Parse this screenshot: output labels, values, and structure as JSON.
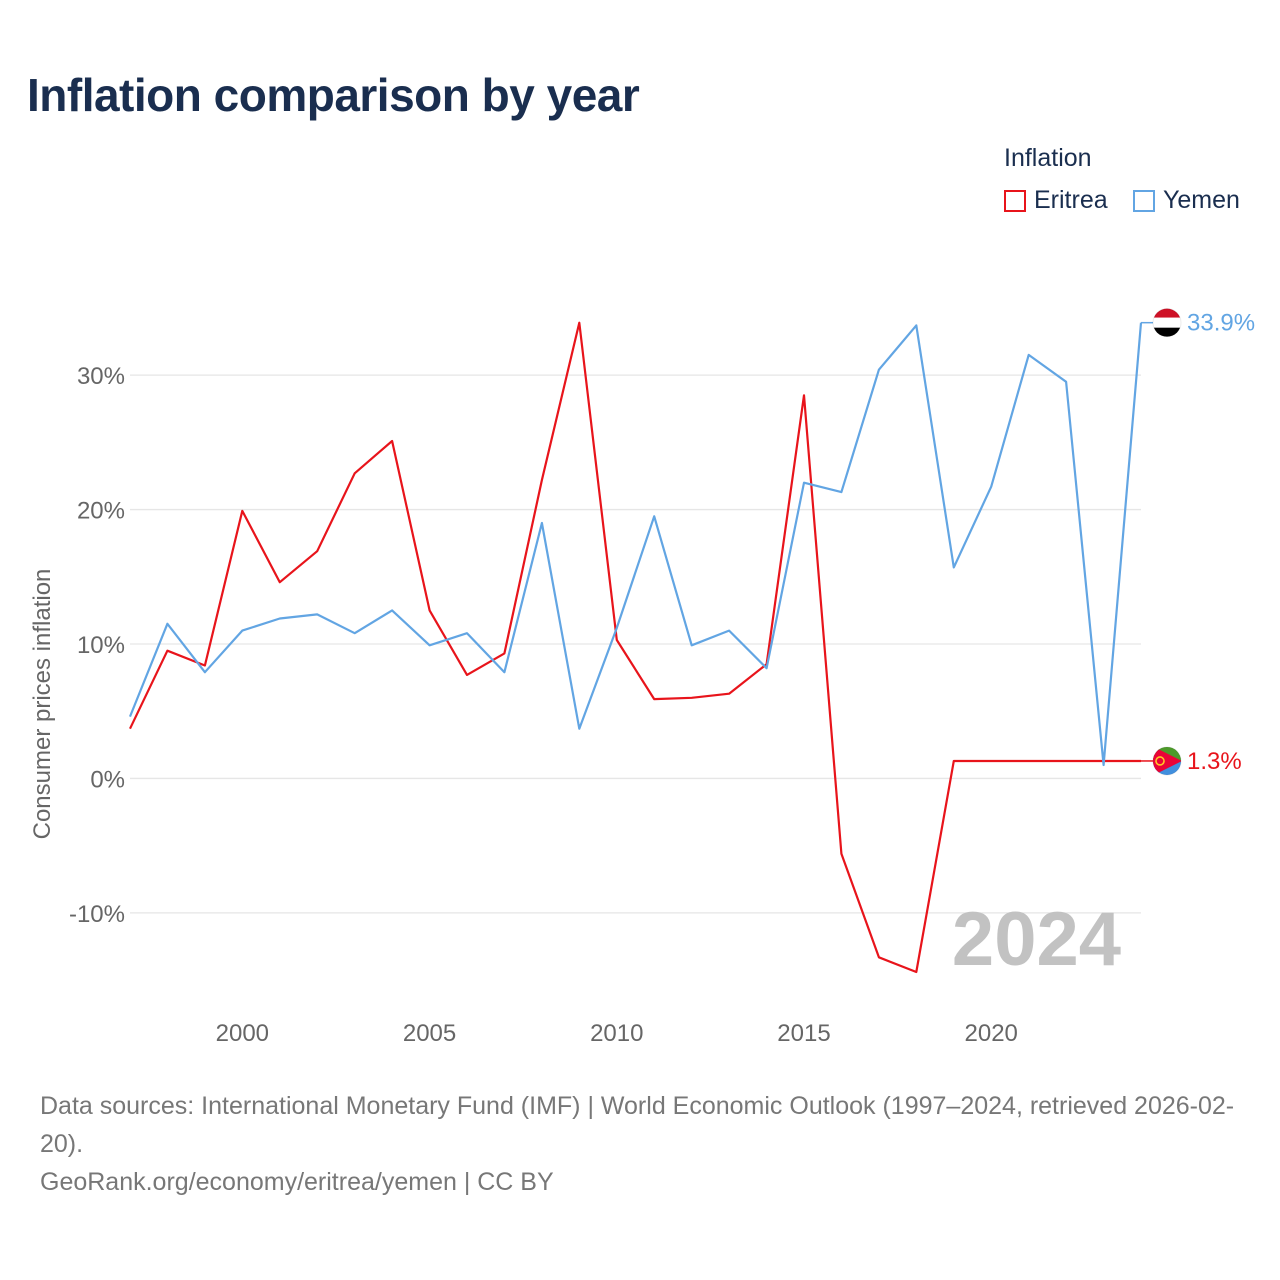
{
  "title": "Inflation comparison by year",
  "legend": {
    "title": "Inflation",
    "items": [
      {
        "label": "Eritrea",
        "color": "#e8141b"
      },
      {
        "label": "Yemen",
        "color": "#62a5e3"
      }
    ]
  },
  "year_watermark": "2024",
  "footer": {
    "sources": "Data sources: International Monetary Fund (IMF) | World Economic Outlook (1997–2024, retrieved 2026-02-20).",
    "credit": "GeoRank.org/economy/eritrea/yemen | CC BY"
  },
  "chart_data": {
    "type": "line",
    "title": "Inflation comparison by year",
    "xlabel": "",
    "ylabel": "Consumer prices inflation",
    "xlim": [
      1997,
      2024
    ],
    "ylim": [
      -17,
      37
    ],
    "y_ticks": [
      -10,
      0,
      10,
      20,
      30
    ],
    "y_tick_labels": [
      "-10%",
      "0%",
      "10%",
      "20%",
      "30%"
    ],
    "x_ticks": [
      2000,
      2005,
      2010,
      2015,
      2020
    ],
    "x_tick_labels": [
      "2000",
      "2005",
      "2010",
      "2015",
      "2020"
    ],
    "grid": true,
    "x": [
      1997,
      1998,
      1999,
      2000,
      2001,
      2002,
      2003,
      2004,
      2005,
      2006,
      2007,
      2008,
      2009,
      2010,
      2011,
      2012,
      2013,
      2014,
      2015,
      2016,
      2017,
      2018,
      2019,
      2020,
      2021,
      2022,
      2023,
      2024
    ],
    "series": [
      {
        "name": "Eritrea",
        "color": "#e8141b",
        "end_label": "1.3%",
        "values": [
          3.7,
          9.5,
          8.4,
          19.9,
          14.6,
          16.9,
          22.7,
          25.1,
          12.5,
          7.7,
          9.3,
          22.2,
          33.9,
          10.3,
          5.9,
          6.0,
          6.3,
          8.5,
          28.5,
          -5.6,
          -13.3,
          -14.4,
          1.3,
          1.3,
          1.3,
          1.3,
          1.3,
          1.3
        ]
      },
      {
        "name": "Yemen",
        "color": "#62a5e3",
        "end_label": "33.9%",
        "values": [
          4.6,
          11.5,
          7.9,
          11.0,
          11.9,
          12.2,
          10.8,
          12.5,
          9.9,
          10.8,
          7.9,
          19.0,
          3.7,
          11.2,
          19.5,
          9.9,
          11.0,
          8.2,
          22.0,
          21.3,
          30.4,
          33.7,
          15.7,
          21.7,
          31.5,
          29.5,
          1.0,
          33.9
        ]
      }
    ]
  }
}
